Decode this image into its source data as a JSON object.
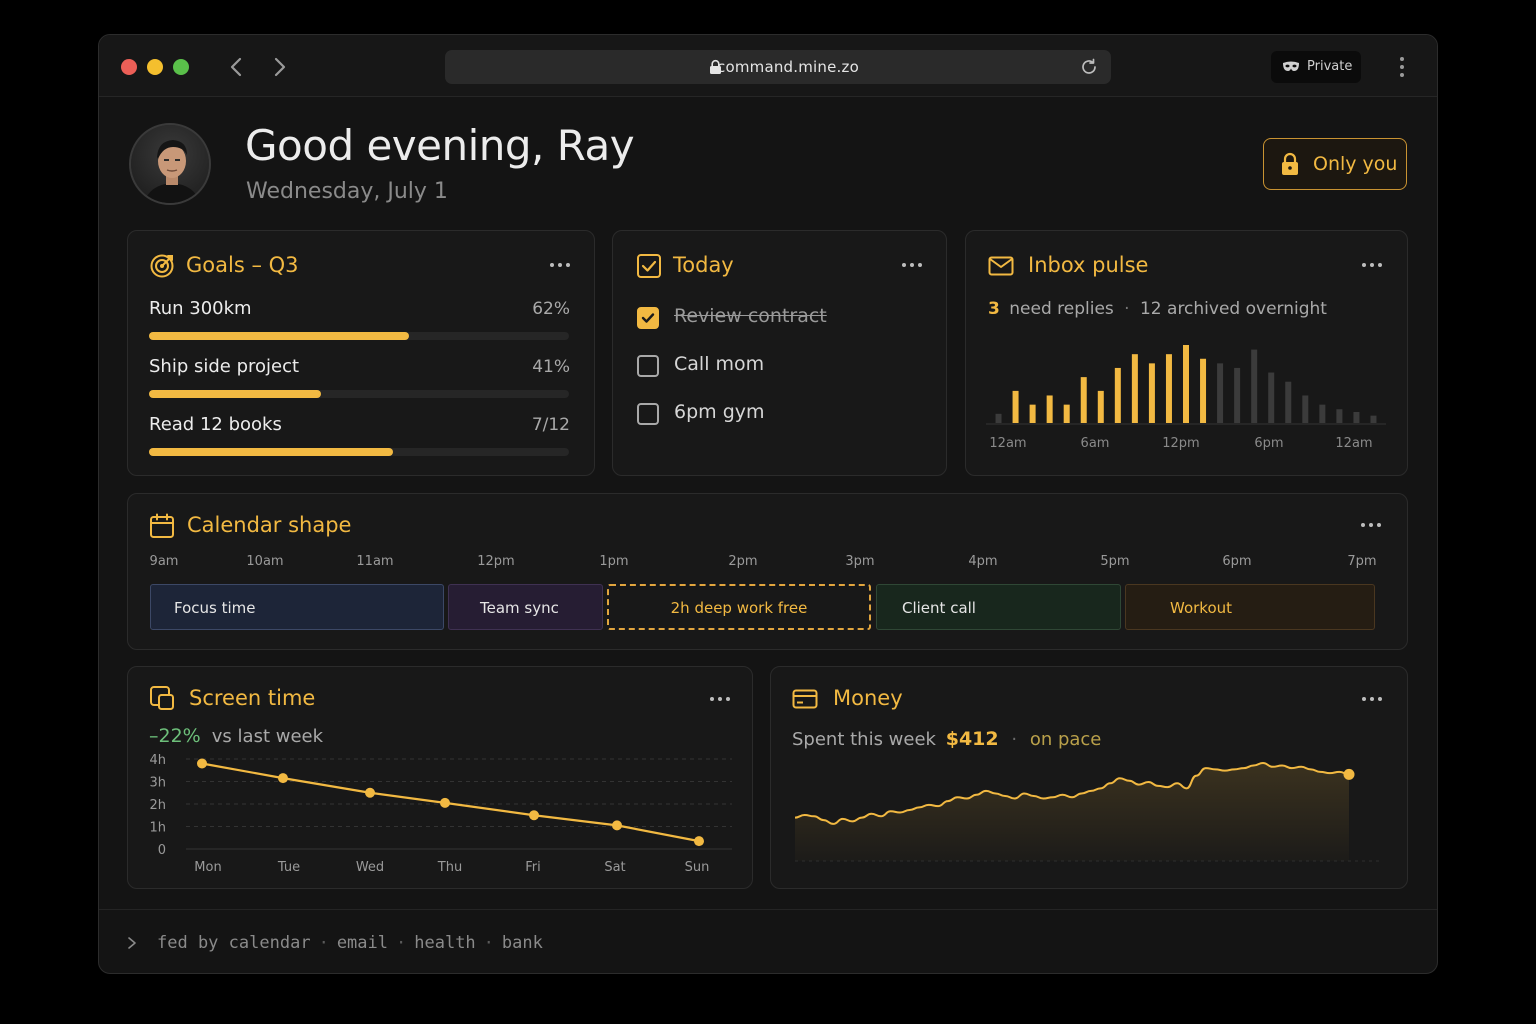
{
  "browser": {
    "url": "command.mine.zo",
    "private_label": "Private"
  },
  "header": {
    "greeting": "Good evening, Ray",
    "date": "Wednesday, July 1",
    "privacy_label": "Only you"
  },
  "goals": {
    "title": "Goals – Q3",
    "items": [
      {
        "name": "Run 300km",
        "value_label": "62%",
        "progress": 0.62
      },
      {
        "name": "Ship side project",
        "value_label": "41%",
        "progress": 0.41
      },
      {
        "name": "Read 12 books",
        "value_label": "7/12",
        "progress": 0.58
      }
    ]
  },
  "today": {
    "title": "Today",
    "items": [
      {
        "text": "Review contract",
        "done": true
      },
      {
        "text": "Call mom",
        "done": false
      },
      {
        "text": "6pm gym",
        "done": false
      }
    ]
  },
  "inbox": {
    "title": "Inbox pulse",
    "need_replies_count": "3",
    "need_replies_label": "need replies",
    "separator": "·",
    "archived_label": "12 archived overnight",
    "chart_data": {
      "type": "bar",
      "x_tick_labels": [
        "12am",
        "6am",
        "12pm",
        "6pm",
        "12am"
      ],
      "values": [
        1,
        3.5,
        2,
        3,
        2,
        5,
        3.5,
        6,
        7.5,
        6.5,
        7.5,
        8.5,
        7,
        6.5,
        6,
        8,
        5.5,
        4.5,
        3,
        2,
        1.5,
        1.2,
        0.8
      ],
      "highlighted": [
        false,
        true,
        true,
        true,
        true,
        true,
        true,
        true,
        true,
        true,
        true,
        true,
        true,
        false,
        false,
        false,
        false,
        false,
        false,
        false,
        false,
        false,
        false
      ]
    }
  },
  "calendar": {
    "title": "Calendar shape",
    "ticks": [
      "9am",
      "10am",
      "11am",
      "12pm",
      "1pm",
      "2pm",
      "3pm",
      "4pm",
      "5pm",
      "6pm",
      "7pm"
    ],
    "blocks": [
      {
        "label": "Focus time",
        "kind": "focus"
      },
      {
        "label": "Team sync",
        "kind": "meeting"
      },
      {
        "label": "2h deep work free",
        "kind": "free"
      },
      {
        "label": "Client call",
        "kind": "call"
      },
      {
        "label": "Workout",
        "kind": "workout"
      }
    ]
  },
  "screen_time": {
    "title": "Screen time",
    "delta": "–22%",
    "delta_label": "vs last week",
    "chart_data": {
      "type": "line",
      "categories": [
        "Mon",
        "Tue",
        "Wed",
        "Thu",
        "Fri",
        "Sat",
        "Sun"
      ],
      "values": [
        3.8,
        3.15,
        2.5,
        2.05,
        1.5,
        1.05,
        0.35
      ],
      "y_tick_labels": [
        "4h",
        "3h",
        "2h",
        "1h",
        "0"
      ],
      "ylim": [
        0,
        4
      ],
      "grid": true
    }
  },
  "money": {
    "title": "Money",
    "spent_label": "Spent this week",
    "amount": "$412",
    "separator": "·",
    "status": "on pace",
    "chart_data": {
      "type": "area",
      "values": [
        18,
        22,
        20,
        14,
        8,
        16,
        12,
        18,
        24,
        20,
        28,
        26,
        30,
        34,
        38,
        36,
        44,
        50,
        48,
        54,
        60,
        56,
        52,
        48,
        56,
        52,
        48,
        50,
        54,
        50,
        56,
        60,
        64,
        72,
        80,
        76,
        70,
        74,
        68,
        66,
        72,
        64,
        84,
        96,
        94,
        92,
        94,
        96,
        100,
        104,
        98,
        100,
        96,
        98,
        94,
        90,
        88,
        90,
        86
      ]
    }
  },
  "footer": {
    "label": "fed by",
    "sources": [
      "calendar",
      "email",
      "health",
      "bank"
    ]
  },
  "colors": {
    "accent": "#f2b942",
    "positive": "#6dbf7a",
    "background": "#141414",
    "card": "#181818"
  },
  "icons": [
    "lock-icon",
    "reload-icon",
    "mask-icon",
    "more-icon",
    "target-icon",
    "checkbox-icon",
    "mail-icon",
    "calendar-icon",
    "screen-icon",
    "card-icon",
    "chevron-right-icon",
    "chevron-left-icon"
  ]
}
